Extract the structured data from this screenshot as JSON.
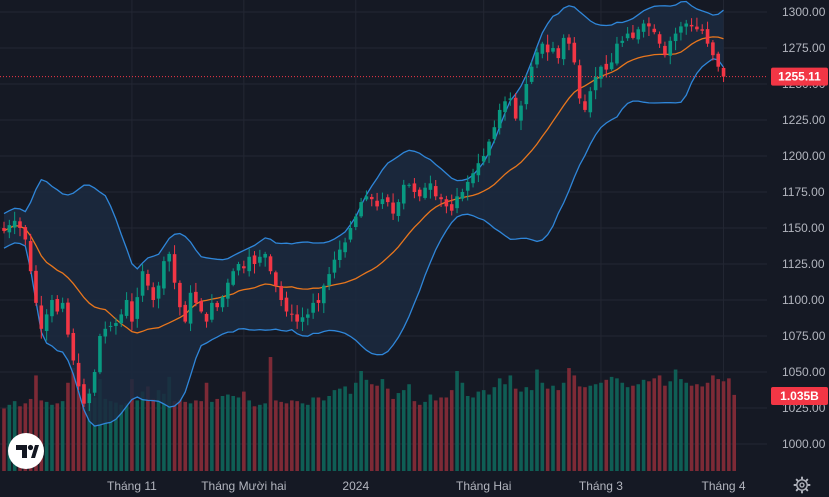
{
  "chart_data": {
    "type": "candlestick",
    "colors": {
      "background": "#151924",
      "grid": "#232733",
      "up": "#089981",
      "down": "#f23645",
      "volume_up": "#0f5e55",
      "volume_down": "#7d2a36",
      "bb_band": "#2f86d9",
      "bb_fill": "#1b2a3f",
      "bb_basis": "#e8761d",
      "price_line": "#f23645",
      "axis_text": "#b2b5be"
    },
    "y_axis": {
      "min": 980,
      "max": 1305,
      "ticks": [
        1300,
        1275,
        1250,
        1225,
        1200,
        1175,
        1150,
        1125,
        1100,
        1075,
        1050,
        1025,
        1000
      ],
      "tick_labels": [
        "1300.00",
        "1275.00",
        "1250.00",
        "1225.00",
        "1200.00",
        "1175.00",
        "1150.00",
        "1125.00",
        "1100.00",
        "1075.00",
        "1050.00",
        "1025.00",
        "1000.00"
      ]
    },
    "x_axis": {
      "labels": [
        {
          "index": 24,
          "text": "Tháng 11"
        },
        {
          "index": 45,
          "text": "Tháng Mười hai"
        },
        {
          "index": 66,
          "text": "2024"
        },
        {
          "index": 90,
          "text": "Tháng Hai"
        },
        {
          "index": 112,
          "text": "Tháng 3"
        },
        {
          "index": 135,
          "text": "Tháng 4"
        }
      ]
    },
    "last_price": {
      "value": 1255.11,
      "label": "1255.11"
    },
    "last_volume": {
      "label": "1.035B"
    },
    "closes": [
      1148,
      1152,
      1155,
      1150,
      1142,
      1120,
      1098,
      1080,
      1090,
      1100,
      1092,
      1098,
      1076,
      1058,
      1040,
      1028,
      1035,
      1050,
      1075,
      1080,
      1082,
      1084,
      1090,
      1100,
      1085,
      1102,
      1120,
      1110,
      1100,
      1110,
      1127,
      1132,
      1112,
      1095,
      1085,
      1105,
      1098,
      1092,
      1085,
      1098,
      1095,
      1102,
      1112,
      1120,
      1125,
      1122,
      1130,
      1125,
      1130,
      1132,
      1120,
      1110,
      1100,
      1092,
      1090,
      1085,
      1088,
      1090,
      1098,
      1098,
      1110,
      1118,
      1128,
      1135,
      1140,
      1150,
      1158,
      1168,
      1172,
      1170,
      1165,
      1170,
      1168,
      1160,
      1168,
      1180,
      1180,
      1175,
      1172,
      1178,
      1181,
      1172,
      1170,
      1165,
      1162,
      1172,
      1175,
      1182,
      1188,
      1195,
      1200,
      1210,
      1220,
      1232,
      1238,
      1240,
      1226,
      1235,
      1250,
      1262,
      1272,
      1278,
      1272,
      1275,
      1268,
      1282,
      1278,
      1265,
      1240,
      1232,
      1245,
      1255,
      1262,
      1260,
      1265,
      1278,
      1280,
      1285,
      1282,
      1288,
      1292,
      1290,
      1286,
      1278,
      1270,
      1280,
      1285,
      1290,
      1292,
      1290,
      1288,
      1287,
      1278,
      1270,
      1262,
      1255.11
    ],
    "volumes": [
      0.85,
      0.9,
      0.95,
      0.88,
      0.92,
      0.98,
      1.3,
      0.96,
      0.94,
      0.9,
      0.92,
      0.95,
      1.2,
      1.4,
      1.18,
      1.1,
      1.02,
      1.0,
      1.25,
      0.98,
      0.95,
      0.93,
      0.9,
      0.92,
      1.25,
      0.96,
      1.08,
      1.15,
      0.98,
      1.1,
      1.05,
      1.28,
      0.95,
      0.97,
      0.94,
      0.92,
      0.96,
      0.95,
      1.2,
      0.94,
      0.98,
      1.02,
      1.04,
      1.02,
      1.0,
      1.08,
      0.96,
      0.88,
      0.9,
      0.92,
      1.55,
      0.96,
      0.94,
      0.92,
      0.96,
      0.95,
      0.92,
      0.9,
      1.0,
      1.0,
      0.96,
      1.02,
      1.1,
      1.12,
      1.15,
      1.05,
      1.2,
      1.36,
      1.24,
      1.18,
      1.16,
      1.25,
      1.12,
      0.98,
      1.06,
      1.1,
      1.18,
      0.95,
      0.9,
      0.94,
      1.04,
      0.96,
      1.0,
      1.0,
      1.1,
      1.36,
      1.2,
      1.02,
      1.0,
      1.08,
      1.1,
      1.04,
      1.14,
      1.26,
      1.18,
      1.3,
      1.12,
      1.08,
      1.14,
      1.1,
      1.38,
      1.2,
      1.12,
      1.16,
      1.1,
      1.2,
      1.4,
      1.3,
      1.15,
      1.14,
      1.16,
      1.18,
      1.2,
      1.24,
      1.28,
      1.26,
      1.2,
      1.14,
      1.16,
      1.18,
      1.24,
      1.22,
      1.26,
      1.3,
      1.16,
      1.22,
      1.38,
      1.25,
      1.2,
      1.16,
      1.18,
      1.15,
      1.2,
      1.3,
      1.25,
      1.22,
      1.26,
      1.035
    ]
  },
  "icons": {
    "logo": "tradingview-logo",
    "settings": "gear-icon"
  }
}
